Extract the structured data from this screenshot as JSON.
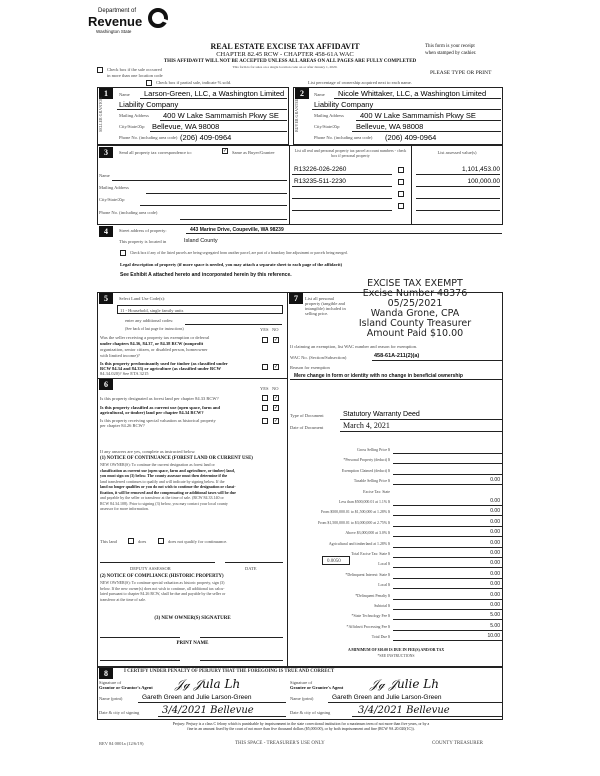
{
  "header": {
    "logo_top": "Department of",
    "logo_main": "Revenue",
    "logo_sub": "Washington State",
    "title": "REAL ESTATE EXCISE TAX AFFIDAVIT",
    "subtitle": "CHAPTER 82.45 RCW - CHAPTER 458-61A WAC",
    "warning": "THIS AFFIDAVIT WILL NOT BE ACCEPTED UNLESS ALL AREAS ON ALL PAGES ARE FULLY COMPLETED",
    "small_note": "This form is for sales on a single location code on or after January 1, 2020.",
    "receipt": "This form is your receipt",
    "receipt2": "when stamped by cashier.",
    "print": "PLEASE TYPE OR PRINT",
    "multi_loc": "Check box if the sale occurred",
    "multi_loc2": "in more than one location code",
    "partial": "Check box if partial sale, indicate %            sold.",
    "percent": "List percentage of ownership acquired next to each name."
  },
  "seller": {
    "num": "1",
    "side": "SELLER GRANTOR",
    "name_label": "Name",
    "name1": "Larson-Green, LLC, a Washington Limited",
    "name2": "Liability Company",
    "addr_label": "Mailing Address",
    "addr": "400 W Lake Sammamish Pkwy SE",
    "city_label": "City/State/Zip",
    "city": "Bellevue, WA 98008",
    "phone_label": "Phone No. (including area code)",
    "phone": "(206) 409-0964"
  },
  "buyer": {
    "num": "2",
    "side": "BUYER GRANTEE",
    "name_label": "Name",
    "name1": "Nicole Whittaker, LLC, a Washington Limited",
    "name2": "Liability Company",
    "addr_label": "Mailing Address",
    "addr": "400 W Lake Sammamish Pkwy SE",
    "city_label": "City/State/Zip",
    "city": "Bellevue, WA 98008",
    "phone_label": "Phone No. (including area code)",
    "phone": "(206) 409-0964"
  },
  "s3": {
    "num": "3",
    "label": "Send all property tax correspondence to:",
    "same": "Same as Buyer/Grantee",
    "name": "Name",
    "addr": "Mailing Address",
    "city": "City/State/Zip",
    "phone": "Phone No. (including area code)",
    "parcel_head": "List all real and personal property tax parcel account numbers - check box if personal property",
    "value_head": "List assessed value(s)",
    "parcels": [
      {
        "num": "R13226-026-2260",
        "value": "1,101,453.00"
      },
      {
        "num": "R13235-511-2230",
        "value": "100,000.00"
      },
      {
        "num": "",
        "value": ""
      },
      {
        "num": "",
        "value": ""
      }
    ]
  },
  "s4": {
    "num": "4",
    "street_label": "Street address of property:",
    "street": "443 Marine Drive, Coupeville, WA 98239",
    "located_label": "This property is located in",
    "located": "Island County",
    "segregated": "Check box if any of the listed parcels are being segregated from another parcel, are part of a boundary line adjustment or parcels being merged.",
    "legal": "Legal description of property (if more space is needed, you may attach a separate sheet to each page of the affidavit)",
    "exhibit": "See Exhibit A attached hereto and incorporated herein by this reference."
  },
  "stamp": [
    "EXCISE TAX EXEMPT",
    "Excise Number 48376",
    "05/25/2021",
    "Wanda Grone, CPA",
    "Island County Treasurer",
    "Amount Paid $10.00"
  ],
  "s5": {
    "num": "5",
    "label": "Select Land Use Code(s):",
    "code": "11 - Household, single family units",
    "additional": "enter any additional codes:",
    "see_back": "(See back of last page for instructions)",
    "yes": "YES",
    "no": "NO",
    "q1": [
      "Was the seller receiving a property tax exemption or deferral",
      "under chapters 84.36, 84.37, or 84.38 RCW (nonprofit",
      "organization, senior citizen, or disabled person, homeowner",
      "with limited income)?"
    ],
    "q2": [
      "Is this property predominantly used for timber (as classified under",
      "RCW 84.34 and 84.33) or agriculture (as classified under RCW",
      "84.34.020)? See ETA 3215"
    ]
  },
  "s6": {
    "num": "6",
    "yes": "YES",
    "no": "NO",
    "q1": "Is this property designated as forest land per chapter 84.33 RCW?",
    "q2": [
      "Is this property classified as current use (open space, farm and",
      "agricultural, or timber) land per chapter 84.34 RCW?"
    ],
    "q3": [
      "Is this property receiving special valuation as historical property",
      "per chapter 84.26 RCW?"
    ],
    "if_yes": "If any answers are yes, complete as instructed below.",
    "notice1_title": "(1) NOTICE OF CONTINUANCE (FOREST LAND OR CURRENT USE)",
    "notice1": [
      "NEW OWNER(S): To continue the current designation as forest land or",
      "classification as current use (open space, farm and agriculture, or timber) land,",
      "you must sign on (3) below. The county assessor must then determine if the",
      "land transferred continues to qualify and will indicate by signing below. If the",
      "land no longer qualifies or you do not wish to continue the designation or classi-",
      "fication, it will be removed and the compensating or additional taxes will be due",
      "and payable by the seller or transferor at the time of sale. (RCW 84.33.140 or",
      "RCW 84.34.108). Prior to signing (3) below, you may contact your local county",
      "assessor for more information."
    ],
    "this_land": "This land",
    "does": "does",
    "does_not": "does not qualify for continuance.",
    "deputy": "DEPUTY ASSESSOR",
    "date": "DATE",
    "notice2_title": "(2) NOTICE OF COMPLIANCE (HISTORIC PROPERTY)",
    "notice2": [
      "NEW OWNER(S): To continue special valuation as historic property, sign (3)",
      "below. If the new owner(s) does not wish to continue, all additional tax calcu-",
      "lated pursuant to chapter 84.26 RCW, shall be due and payable by the seller or",
      "transferor at the time of sale."
    ],
    "new_owner_sig": "(3) NEW OWNER(S) SIGNATURE",
    "print_name": "PRINT NAME"
  },
  "s7": {
    "num": "7",
    "label": "List all personal property (tangible and intangible) included in selling price.",
    "exempt_note": "If claiming an exemption, list WAC number and reason for exemption.",
    "wac_label": "WAC No. (Section/Subsection)",
    "wac": "458-61A-211(2)(a)",
    "reason_label": "Reason for exemption",
    "reason": "Mere change in form or identity with no change in beneficial ownership",
    "doc_type_label": "Type of Document",
    "doc_type": "Statutory Warranty Deed",
    "doc_date_label": "Date of Document",
    "doc_date": "March 4, 2021"
  },
  "calc": {
    "rows": [
      {
        "label": "Gross Selling Price $",
        "value": ""
      },
      {
        "label": "*Personal Property (deduct) $",
        "value": ""
      },
      {
        "label": "Exemption Claimed (deduct) $",
        "value": ""
      },
      {
        "label": "Taxable Selling Price $",
        "value": "0.00"
      },
      {
        "label": "Excise Tax: State",
        "value": ""
      },
      {
        "label": "Less than $500,000.01 at 1.1% $",
        "value": "0.00"
      },
      {
        "label": "From $500,000.01 to $1,500,000 at 1.28% $",
        "value": "0.00"
      },
      {
        "label": "From $1,500,000.01 to $3,000,000 at 2.75% $",
        "value": "0.00"
      },
      {
        "label": "Above $3,000,000 at 3.0% $",
        "value": "0.00"
      },
      {
        "label": "Agricultural and timberland at 1.28% $",
        "value": "0.00"
      },
      {
        "label": "Total Excise Tax: State $",
        "value": "0.00"
      },
      {
        "label": "Local $",
        "value": "0.00"
      },
      {
        "label": "*Delinquent Interest: State $",
        "value": "0.00"
      },
      {
        "label": "Local $",
        "value": "0.00"
      },
      {
        "label": "*Delinquent Penalty $",
        "value": "0.00"
      },
      {
        "label": "Subtotal $",
        "value": "0.00"
      },
      {
        "label": "*State Technology Fee $",
        "value": "5.00"
      },
      {
        "label": "*Affidavit Processing Fee $",
        "value": "5.00"
      },
      {
        "label": "Total Due $",
        "value": "10.00"
      }
    ],
    "local_rate": "0.0050",
    "minimum": "A MINIMUM OF $10.00 IS DUE IN FEE(S) AND/OR TAX",
    "see_instr": "*SEE INSTRUCTIONS"
  },
  "s8": {
    "num": "8",
    "certify": "I CERTIFY UNDER PENALTY OF PERJURY THAT THE FOREGOING IS TRUE AND CORRECT",
    "sig_label": "Signature of",
    "sig_label2": "Grantor or Grantor's Agent",
    "grantee_sig_label": "Signature of",
    "grantee_sig_label2": "Grantee or Grantee's Agent",
    "name_label": "Name (print)",
    "grantor_name": "Gareth Green and Julie Larson-Green",
    "grantee_name": "Gareth Green and Julie Larson-Green",
    "date_label": "Date & city of signing",
    "grantor_date": "3/4/2021 Bellevue",
    "grantee_date": "3/4/2021 Bellevue",
    "perjury": [
      "Perjury: Perjury is a class C felony which is punishable by imprisonment in the state correctional institution for a maximum term of not more than five years, or by a",
      "fine in an amount fixed by the court of not more than five thousand dollars ($5,000.00), or by both imprisonment and fine (RCW 9A.20.020(1C))."
    ]
  },
  "footer": {
    "rev": "REV 84 0001a (12/6/19)",
    "treasurer_use": "THIS SPACE - TREASURER'S USE ONLY",
    "county": "COUNTY TREASURER"
  }
}
